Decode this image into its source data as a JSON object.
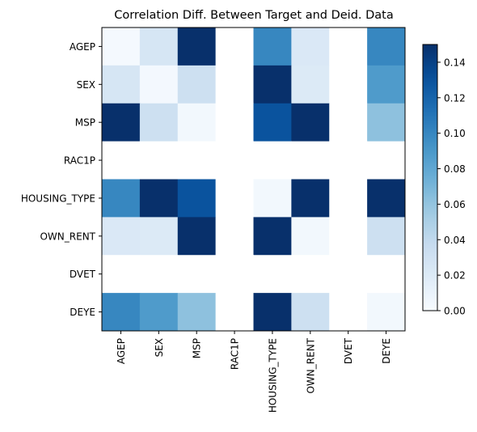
{
  "chart_data": {
    "type": "heatmap",
    "title": "Correlation Diff. Between Target and Deid. Data",
    "x_categories": [
      "AGEP",
      "SEX",
      "MSP",
      "RAC1P",
      "HOUSING_TYPE",
      "OWN_RENT",
      "DVET",
      "DEYE"
    ],
    "y_categories": [
      "AGEP",
      "SEX",
      "MSP",
      "RAC1P",
      "HOUSING_TYPE",
      "OWN_RENT",
      "DVET",
      "DEYE"
    ],
    "values": [
      [
        0.002,
        0.025,
        0.15,
        null,
        0.1,
        0.022,
        null,
        0.1
      ],
      [
        0.025,
        0.003,
        0.032,
        null,
        0.15,
        0.02,
        null,
        0.088
      ],
      [
        0.15,
        0.032,
        0.004,
        null,
        0.13,
        0.15,
        null,
        0.062
      ],
      [
        null,
        null,
        null,
        null,
        null,
        null,
        null,
        null
      ],
      [
        0.1,
        0.15,
        0.13,
        null,
        0.004,
        0.15,
        null,
        0.15
      ],
      [
        0.022,
        0.02,
        0.15,
        null,
        0.15,
        0.004,
        null,
        0.032
      ],
      [
        null,
        null,
        null,
        null,
        null,
        null,
        null,
        null
      ],
      [
        0.1,
        0.088,
        0.062,
        null,
        0.15,
        0.032,
        null,
        0.004
      ]
    ],
    "colormap": "Blues",
    "color_range": [
      0,
      0.15
    ],
    "colorbar_ticks": [
      "0.00",
      "0.02",
      "0.04",
      "0.06",
      "0.08",
      "0.10",
      "0.12",
      "0.14"
    ],
    "colorbar_tick_values": [
      0,
      0.02,
      0.04,
      0.06,
      0.08,
      0.1,
      0.12,
      0.14
    ],
    "colorbar_position": "right",
    "grid": false
  }
}
